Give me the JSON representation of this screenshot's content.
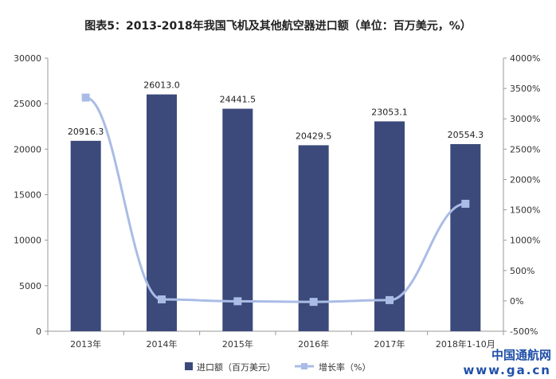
{
  "chart_data": {
    "type": "bar+line",
    "title": "图表5：2013-2018年我国飞机及其他航空器进口额（单位：百万美元，%）",
    "categories": [
      "2013年",
      "2014年",
      "2015年",
      "2016年",
      "2017年",
      "2018年1-10月"
    ],
    "series": [
      {
        "name": "进口额（百万美元）",
        "type": "bar",
        "axis": "left",
        "color": "#3b4a7a",
        "values": [
          20916.3,
          26013.0,
          24441.5,
          20429.5,
          23053.1,
          20554.3
        ],
        "labels": [
          "20916.3",
          "26013.0",
          "24441.5",
          "20429.5",
          "23053.1",
          "20554.3"
        ]
      },
      {
        "name": "增长率（%）",
        "type": "line",
        "axis": "right",
        "color": "#aabce6",
        "values": [
          3350,
          24.4,
          -6.0,
          -16.4,
          12.8,
          1600
        ]
      }
    ],
    "left_axis": {
      "min": 0,
      "max": 30000,
      "ticks": [
        "0",
        "5000",
        "10000",
        "15000",
        "20000",
        "25000",
        "30000"
      ]
    },
    "right_axis": {
      "min": -500,
      "max": 4000,
      "ticks": [
        "-500%",
        "0%",
        "500%",
        "1000%",
        "1500%",
        "2000%",
        "2500%",
        "3000%",
        "3500%",
        "4000%"
      ]
    },
    "legend_position": "bottom"
  },
  "watermark": {
    "line1": "中国通航网",
    "line2": "www.ga.cn"
  }
}
